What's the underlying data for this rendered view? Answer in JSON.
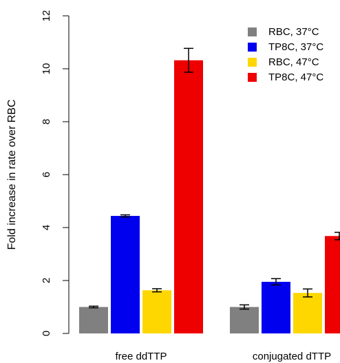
{
  "chart_data": {
    "type": "bar",
    "title": "",
    "xlabel": "",
    "ylabel": "Fold increase in rate over RBC",
    "ylim": [
      0,
      12
    ],
    "yticks": [
      "0",
      "2",
      "4",
      "6",
      "8",
      "10",
      "12"
    ],
    "grid": false,
    "legend_position": "top-right",
    "categories": [
      "free ddTTP",
      "conjugated dTTP"
    ],
    "series": [
      {
        "name": "RBC, 37°C",
        "color": "#808080",
        "values": [
          1.0,
          1.0
        ],
        "errors": [
          0.03,
          0.08
        ]
      },
      {
        "name": "TP8C, 37°C",
        "color": "#0000ee",
        "values": [
          4.44,
          1.95
        ],
        "errors": [
          0.04,
          0.12
        ]
      },
      {
        "name": "RBC, 47°C",
        "color": "#ffd700",
        "values": [
          1.63,
          1.53
        ],
        "errors": [
          0.06,
          0.15
        ]
      },
      {
        "name": "TP8C, 47°C",
        "color": "#ee0000",
        "values": [
          10.32,
          3.68
        ],
        "errors": [
          0.45,
          0.14
        ]
      }
    ]
  }
}
